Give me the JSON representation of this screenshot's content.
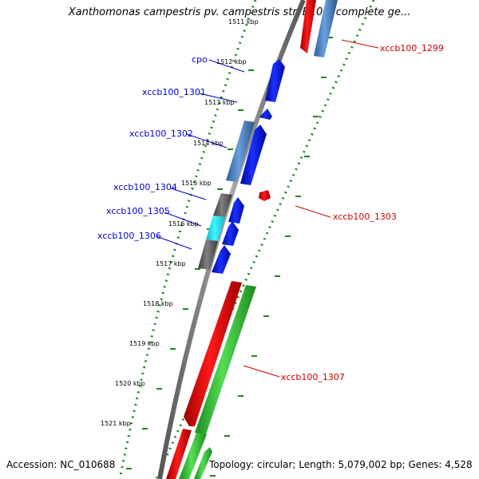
{
  "title": "Xanthomonas campestris pv. campestris str. B100, complete ge...",
  "footer": {
    "accession": "Accession: NC_010688",
    "summary": "Topology: circular; Length: 5,079,002 bp; Genes: 4,528"
  },
  "colors": {
    "forward_cds": "#0a1fe0",
    "reverse_cds": "#e50000",
    "forward_alt": "#4a84c4",
    "green_track": "#33bb33",
    "grey_track": "#606060",
    "cyan_track": "#22ddee",
    "backbone": "#888888",
    "label_forward": "#0000cc",
    "label_reverse": "#cc0000"
  },
  "ticks": [
    "1511 kbp",
    "1512 kbp",
    "1513 kbp",
    "1514 kbp",
    "1515 kbp",
    "1516 kbp",
    "1517 kbp",
    "1518 kbp",
    "1519 kbp",
    "1520 kbp",
    "1521 kbp"
  ],
  "labels": {
    "cpo": "cpo",
    "g1301": "xccb100_1301",
    "g1302": "xccb100_1302",
    "g1304": "xccb100_1304",
    "g1305": "xccb100_1305",
    "g1306": "xccb100_1306",
    "g1299": "xccb100_1299",
    "g1303": "xccb100_1303",
    "g1307": "xccb100_1307"
  }
}
